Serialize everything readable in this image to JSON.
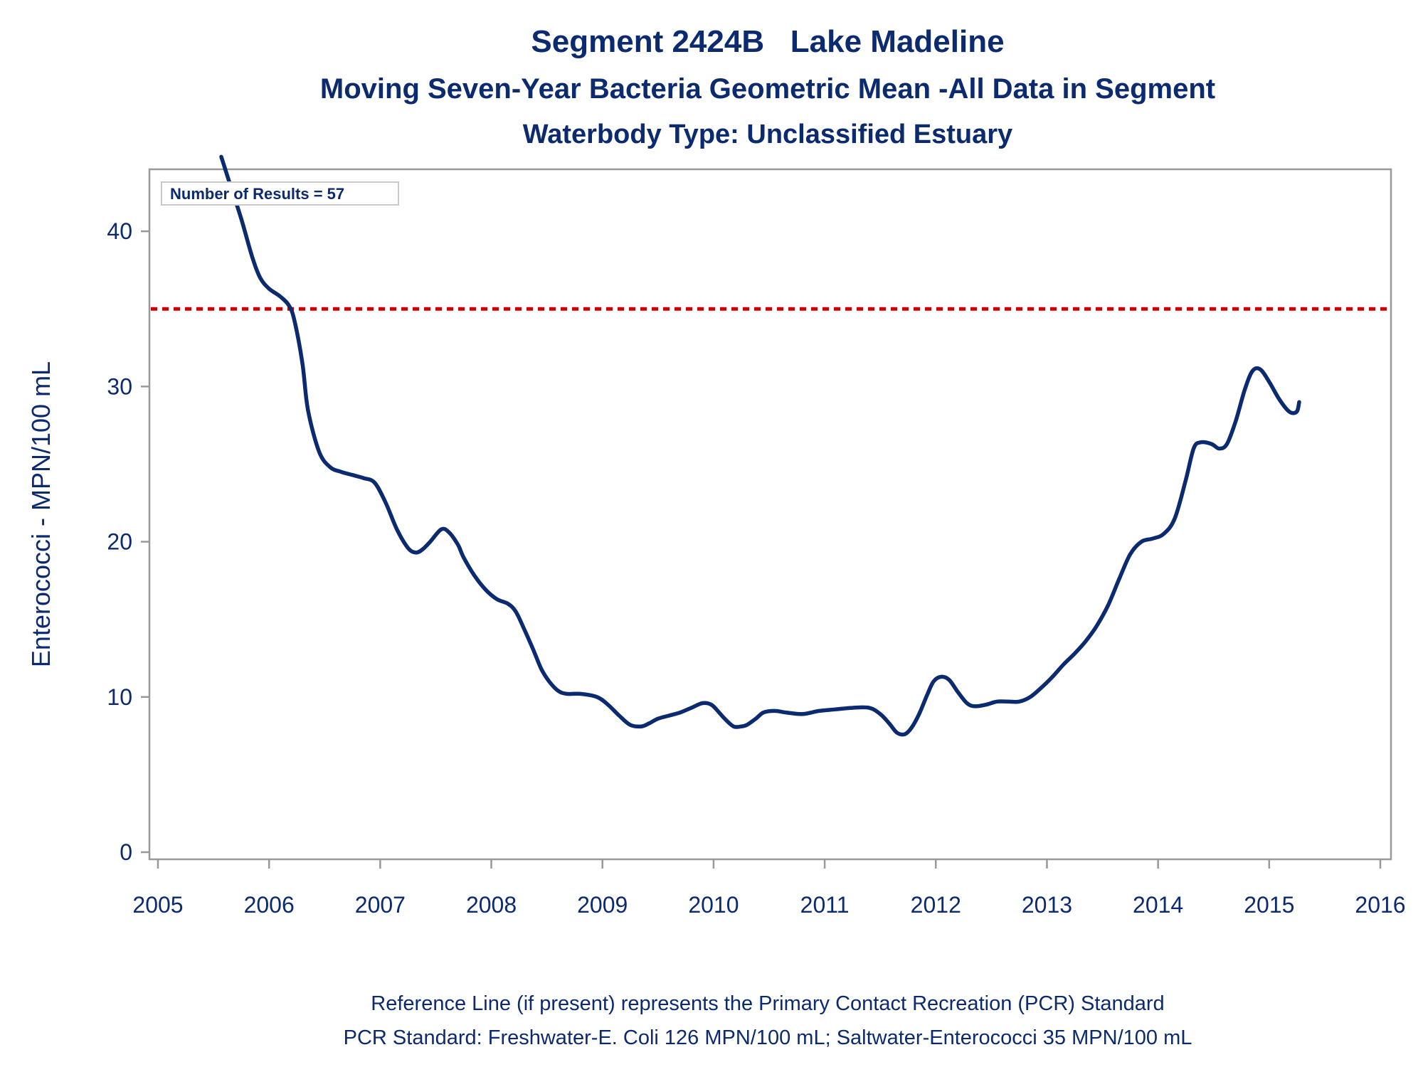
{
  "chart_data": {
    "type": "line",
    "title": "Segment 2424B   Lake Madeline",
    "subtitle": "Moving Seven-Year Bacteria Geometric Mean -All Data in Segment",
    "subtitle2": "Waterbody Type: Unclassified Estuary",
    "xlabel": "",
    "ylabel": "Enterococci - MPN/100 mL",
    "xlim": [
      2005,
      2016
    ],
    "ylim": [
      0,
      45
    ],
    "x_ticks": [
      "2005",
      "2006",
      "2007",
      "2008",
      "2009",
      "2010",
      "2011",
      "2012",
      "2013",
      "2014",
      "2015",
      "2016"
    ],
    "y_ticks": [
      "0",
      "10",
      "20",
      "30",
      "40"
    ],
    "annotation": "Number of Results = 57",
    "reference_line": {
      "y": 35,
      "color": "#cc0000",
      "style": "dotted"
    },
    "series": [
      {
        "color": "#0b2a6f",
        "x": [
          2005.57,
          2005.65,
          2005.75,
          2005.85,
          2005.92,
          2006.0,
          2006.1,
          2006.18,
          2006.23,
          2006.3,
          2006.35,
          2006.45,
          2006.55,
          2006.65,
          2006.75,
          2006.85,
          2006.95,
          2007.05,
          2007.15,
          2007.25,
          2007.32,
          2007.38,
          2007.45,
          2007.55,
          2007.62,
          2007.7,
          2007.75,
          2007.85,
          2007.95,
          2008.05,
          2008.15,
          2008.22,
          2008.3,
          2008.38,
          2008.45,
          2008.52,
          2008.6,
          2008.68,
          2008.8,
          2008.95,
          2009.05,
          2009.15,
          2009.25,
          2009.35,
          2009.42,
          2009.5,
          2009.6,
          2009.7,
          2009.8,
          2009.9,
          2009.98,
          2010.05,
          2010.1,
          2010.18,
          2010.25,
          2010.3,
          2010.38,
          2010.45,
          2010.55,
          2010.65,
          2010.8,
          2010.95,
          2011.1,
          2011.25,
          2011.4,
          2011.5,
          2011.58,
          2011.65,
          2011.72,
          2011.78,
          2011.85,
          2011.92,
          2011.98,
          2012.05,
          2012.12,
          2012.2,
          2012.28,
          2012.35,
          2012.45,
          2012.55,
          2012.65,
          2012.75,
          2012.85,
          2012.95,
          2013.05,
          2013.15,
          2013.25,
          2013.35,
          2013.45,
          2013.55,
          2013.65,
          2013.75,
          2013.85,
          2013.95,
          2014.05,
          2014.15,
          2014.25,
          2014.32,
          2014.38,
          2014.48,
          2014.55,
          2014.62,
          2014.7,
          2014.78,
          2014.85,
          2014.92,
          2015.0,
          2015.08,
          2015.15,
          2015.2,
          2015.25,
          2015.27
        ],
        "values": [
          44.8,
          43.0,
          40.8,
          38.3,
          37.0,
          36.3,
          35.8,
          35.2,
          34.2,
          31.5,
          28.5,
          25.8,
          24.8,
          24.5,
          24.3,
          24.1,
          23.8,
          22.5,
          20.8,
          19.6,
          19.3,
          19.5,
          20.0,
          20.8,
          20.6,
          19.8,
          19.0,
          17.8,
          16.9,
          16.3,
          16.0,
          15.5,
          14.3,
          13.0,
          11.8,
          11.0,
          10.4,
          10.2,
          10.2,
          10.0,
          9.5,
          8.8,
          8.2,
          8.1,
          8.3,
          8.6,
          8.8,
          9.0,
          9.3,
          9.6,
          9.5,
          9.0,
          8.6,
          8.1,
          8.1,
          8.2,
          8.6,
          9.0,
          9.1,
          9.0,
          8.9,
          9.1,
          9.2,
          9.3,
          9.3,
          8.9,
          8.3,
          7.7,
          7.6,
          8.0,
          8.9,
          10.1,
          11.0,
          11.3,
          11.1,
          10.3,
          9.6,
          9.4,
          9.5,
          9.7,
          9.7,
          9.7,
          10.0,
          10.6,
          11.3,
          12.1,
          12.8,
          13.6,
          14.6,
          15.9,
          17.6,
          19.2,
          20.0,
          20.2,
          20.5,
          21.5,
          24.0,
          26.0,
          26.4,
          26.3,
          26.0,
          26.3,
          27.8,
          29.8,
          31.0,
          31.1,
          30.3,
          29.3,
          28.6,
          28.3,
          28.4,
          29.0
        ]
      }
    ]
  },
  "footnotes": {
    "line1": "Reference Line (if present) represents the Primary Contact Recreation (PCR) Standard",
    "line2": "PCR Standard: Freshwater-E. Coli 126 MPN/100 mL; Saltwater-Enterococci 35 MPN/100 mL"
  }
}
